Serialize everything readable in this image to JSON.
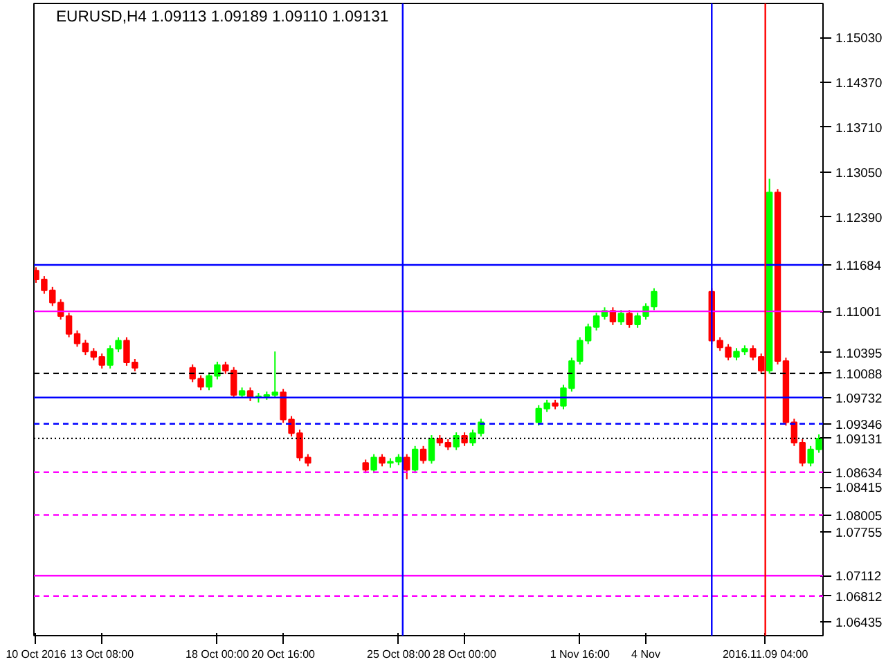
{
  "chart_data": {
    "type": "candlestick",
    "title": "EURUSD,H4  1.09113 1.09189 1.09110 1.09131",
    "grid": false,
    "x": [
      "2016-10-10T16:00",
      "2016-10-11T00:00",
      "2016-10-11T08:00",
      "2016-10-11T16:00",
      "2016-10-12T00:00",
      "2016-10-12T08:00",
      "2016-10-12T16:00",
      "2016-10-13T00:00",
      "2016-10-13T08:00",
      "2016-10-13T16:00",
      "2016-10-14T00:00",
      "2016-10-14T08:00",
      "2016-10-14T16:00",
      "2016-10-17T00:00",
      "2016-10-17T08:00",
      "2016-10-17T16:00",
      "2016-10-18T00:00",
      "2016-10-18T08:00",
      "2016-10-18T16:00",
      "2016-10-19T00:00",
      "2016-10-19T08:00",
      "2016-10-19T16:00",
      "2016-10-20T00:00",
      "2016-10-20T08:00",
      "2016-10-20T16:00",
      "2016-10-21T00:00",
      "2016-10-21T08:00",
      "2016-10-21T16:00",
      "2016-10-24T00:00",
      "2016-10-24T08:00",
      "2016-10-24T16:00",
      "2016-10-25T00:00",
      "2016-10-25T08:00",
      "2016-10-25T16:00",
      "2016-10-26T00:00",
      "2016-10-26T08:00",
      "2016-10-26T16:00",
      "2016-10-27T00:00",
      "2016-10-27T08:00",
      "2016-10-27T16:00",
      "2016-10-28T00:00",
      "2016-10-28T08:00",
      "2016-10-28T16:00",
      "2016-10-31T00:00",
      "2016-10-31T08:00",
      "2016-10-31T16:00",
      "2016-11-01T00:00",
      "2016-11-01T08:00",
      "2016-11-01T16:00",
      "2016-11-02T00:00",
      "2016-11-02T08:00",
      "2016-11-02T16:00",
      "2016-11-03T00:00",
      "2016-11-03T08:00",
      "2016-11-03T16:00",
      "2016-11-04T00:00",
      "2016-11-04T08:00",
      "2016-11-04T16:00",
      "2016-11-07T00:00",
      "2016-11-07T08:00",
      "2016-11-07T16:00",
      "2016-11-08T00:00",
      "2016-11-08T08:00",
      "2016-11-08T16:00",
      "2016-11-09T00:00",
      "2016-11-09T08:00",
      "2016-11-09T16:00",
      "2016-11-10T00:00",
      "2016-11-10T08:00",
      "2016-11-10T16:00",
      "2016-11-11T00:00",
      "2016-11-11T08:00"
    ],
    "ohlc": [
      [
        1.116,
        1.1165,
        1.1142,
        1.1147
      ],
      [
        1.1147,
        1.1152,
        1.1126,
        1.1131
      ],
      [
        1.1131,
        1.1136,
        1.1108,
        1.1113
      ],
      [
        1.1113,
        1.1118,
        1.1088,
        1.1093
      ],
      [
        1.1093,
        1.1098,
        1.1062,
        1.1067
      ],
      [
        1.1067,
        1.1072,
        1.1048,
        1.1053
      ],
      [
        1.1053,
        1.1058,
        1.1036,
        1.1041
      ],
      [
        1.1041,
        1.1046,
        1.1028,
        1.1033
      ],
      [
        1.1033,
        1.1038,
        1.1016,
        1.1021
      ],
      [
        1.1021,
        1.105,
        1.1016,
        1.1045
      ],
      [
        1.1045,
        1.1062,
        1.104,
        1.1057
      ],
      [
        1.1057,
        1.1062,
        1.102,
        1.1025
      ],
      [
        1.1025,
        1.103,
        1.1012,
        1.1017
      ],
      [
        1.1017,
        1.1022,
        1.0996,
        1.1001
      ],
      [
        1.1001,
        1.1006,
        1.0984,
        1.0989
      ],
      [
        1.0989,
        1.101,
        1.0984,
        1.1005
      ],
      [
        1.1005,
        1.1026,
        1.1,
        1.1021
      ],
      [
        1.1021,
        1.1026,
        1.1008,
        1.1013
      ],
      [
        1.1013,
        1.1018,
        1.0972,
        1.0977
      ],
      [
        1.0977,
        1.0988,
        1.0972,
        1.0983
      ],
      [
        1.0983,
        1.0988,
        1.0968,
        1.0973
      ],
      [
        1.0973,
        1.098,
        1.0966,
        1.0975
      ],
      [
        1.0975,
        1.0982,
        1.097,
        1.0977
      ],
      [
        1.0977,
        1.1041,
        1.0972,
        1.0981
      ],
      [
        1.0981,
        1.0986,
        1.0936,
        1.0941
      ],
      [
        1.0941,
        1.0946,
        1.0916,
        1.0921
      ],
      [
        1.0921,
        1.0926,
        1.088,
        1.0885
      ],
      [
        1.0885,
        1.089,
        1.0872,
        1.0877
      ],
      [
        1.0877,
        1.0882,
        1.0862,
        1.0867
      ],
      [
        1.0867,
        1.089,
        1.0862,
        1.0885
      ],
      [
        1.0885,
        1.089,
        1.0872,
        1.0877
      ],
      [
        1.0877,
        1.0884,
        1.087,
        1.0879
      ],
      [
        1.0879,
        1.089,
        1.0874,
        1.0885
      ],
      [
        1.0885,
        1.089,
        1.0853,
        1.0867
      ],
      [
        1.0867,
        1.0902,
        1.0862,
        1.0897
      ],
      [
        1.0897,
        1.0902,
        1.0876,
        1.0881
      ],
      [
        1.0881,
        1.0918,
        1.0876,
        1.0913
      ],
      [
        1.0913,
        1.0918,
        1.0902,
        1.0907
      ],
      [
        1.0907,
        1.0912,
        1.0896,
        1.0901
      ],
      [
        1.0901,
        1.0922,
        1.0896,
        1.0917
      ],
      [
        1.0917,
        1.0922,
        1.0902,
        1.0907
      ],
      [
        1.0907,
        1.0926,
        1.0902,
        1.0921
      ],
      [
        1.0921,
        1.0942,
        1.0916,
        1.0937
      ],
      [
        1.0937,
        1.0962,
        1.0932,
        1.0957
      ],
      [
        1.0957,
        1.097,
        1.0952,
        1.0965
      ],
      [
        1.0965,
        1.097,
        1.0956,
        1.0961
      ],
      [
        1.0961,
        1.0992,
        1.0956,
        1.0987
      ],
      [
        1.0987,
        1.1032,
        1.0982,
        1.1027
      ],
      [
        1.1027,
        1.1062,
        1.1022,
        1.1057
      ],
      [
        1.1057,
        1.1082,
        1.1052,
        1.1077
      ],
      [
        1.1077,
        1.1098,
        1.1072,
        1.1093
      ],
      [
        1.1093,
        1.1106,
        1.1088,
        1.1101
      ],
      [
        1.1101,
        1.1106,
        1.108,
        1.1085
      ],
      [
        1.1085,
        1.1102,
        1.108,
        1.1097
      ],
      [
        1.1097,
        1.1102,
        1.1076,
        1.1081
      ],
      [
        1.1081,
        1.1098,
        1.1076,
        1.1093
      ],
      [
        1.1093,
        1.1112,
        1.1088,
        1.1107
      ],
      [
        1.1107,
        1.1134,
        1.1102,
        1.1129
      ],
      [
        1.1129,
        1.1134,
        1.1052,
        1.1057
      ],
      [
        1.1057,
        1.1062,
        1.1042,
        1.1047
      ],
      [
        1.1047,
        1.1052,
        1.1028,
        1.1033
      ],
      [
        1.1033,
        1.1046,
        1.1028,
        1.1041
      ],
      [
        1.1041,
        1.105,
        1.1036,
        1.1045
      ],
      [
        1.1045,
        1.105,
        1.1028,
        1.1033
      ],
      [
        1.1033,
        1.1038,
        1.1008,
        1.1013
      ],
      [
        1.1013,
        1.1295,
        1.1008,
        1.1275
      ],
      [
        1.1275,
        1.128,
        1.1022,
        1.1027
      ],
      [
        1.1027,
        1.1032,
        1.0932,
        1.0937
      ],
      [
        1.0937,
        1.0942,
        1.0902,
        1.0907
      ],
      [
        1.0907,
        1.0912,
        1.0872,
        1.0877
      ],
      [
        1.0877,
        1.0902,
        1.0872,
        1.0897
      ],
      [
        1.0897,
        1.0919,
        1.0892,
        1.0913
      ]
    ],
    "colors": [
      "#ff0000",
      "#ff0000",
      "#ff0000",
      "#ff0000",
      "#ff0000",
      "#ff0000",
      "#ff0000",
      "#ff0000",
      "#ff0000",
      "#00ff00",
      "#00ff00",
      "#ff0000",
      "#ff0000",
      "#ff0000",
      "#ff0000",
      "#00ff00",
      "#00ff00",
      "#ff0000",
      "#ff0000",
      "#00ff00",
      "#ff0000",
      "#00ff00",
      "#00ff00",
      "#00ff00",
      "#ff0000",
      "#ff0000",
      "#ff0000",
      "#ff0000",
      "#ff0000",
      "#00ff00",
      "#ff0000",
      "#00ff00",
      "#00ff00",
      "#ff0000",
      "#00ff00",
      "#ff0000",
      "#00ff00",
      "#ff0000",
      "#ff0000",
      "#00ff00",
      "#ff0000",
      "#00ff00",
      "#00ff00",
      "#00ff00",
      "#00ff00",
      "#ff0000",
      "#00ff00",
      "#00ff00",
      "#00ff00",
      "#00ff00",
      "#00ff00",
      "#00ff00",
      "#ff0000",
      "#00ff00",
      "#ff0000",
      "#00ff00",
      "#00ff00",
      "#00ff00",
      "#ff0000",
      "#ff0000",
      "#ff0000",
      "#00ff00",
      "#00ff00",
      "#ff0000",
      "#ff0000",
      "#00ff00",
      "#ff0000",
      "#ff0000",
      "#ff0000",
      "#ff0000",
      "#00ff00",
      "#00ff00"
    ],
    "xlim": [
      "2016-10-10T14:00",
      "2016-11-11T12:00"
    ],
    "ylim": [
      1.0623,
      1.1553
    ],
    "xticks": [
      {
        "value": "2016-10-10T16:00",
        "label": "10 Oct 2016"
      },
      {
        "value": "2016-10-13T08:00",
        "label": "13 Oct 08:00"
      },
      {
        "value": "2016-10-18T00:00",
        "label": "18 Oct 00:00"
      },
      {
        "value": "2016-10-20T16:00",
        "label": "20 Oct 16:00"
      },
      {
        "value": "2016-10-25T08:00",
        "label": "25 Oct 08:00"
      },
      {
        "value": "2016-10-28T00:00",
        "label": "28 Oct 00:00"
      },
      {
        "value": "2016-11-01T16:00",
        "label": "1 Nov 16:00"
      },
      {
        "value": "2016-11-04T08:00",
        "label": "4 Nov"
      }
    ],
    "yticks": [
      {
        "value": 1.1503,
        "label": "1.15030"
      },
      {
        "value": 1.1437,
        "label": "1.14370"
      },
      {
        "value": 1.1371,
        "label": "1.13710"
      },
      {
        "value": 1.1305,
        "label": "1.13050"
      },
      {
        "value": 1.1239,
        "label": "1.12390"
      },
      {
        "value": 1.10395,
        "label": "1.10395"
      },
      {
        "value": 1.08415,
        "label": "1.08415"
      },
      {
        "value": 1.07755,
        "label": "1.07755"
      },
      {
        "value": 1.06435,
        "label": "1.06435"
      }
    ],
    "ref_lines": [
      {
        "axis": "y",
        "value": 1.11684,
        "label": "1.11684",
        "color": "#0000ff",
        "line_style": "solid"
      },
      {
        "axis": "y",
        "value": 1.11001,
        "label": "1.11001",
        "color": "#ff00ff",
        "line_style": "solid"
      },
      {
        "axis": "y",
        "value": 1.10088,
        "label": "1.10088",
        "color": "#000000",
        "line_style": "dashed"
      },
      {
        "axis": "y",
        "value": 1.09732,
        "label": "1.09732",
        "color": "#0000ff",
        "line_style": "solid"
      },
      {
        "axis": "y",
        "value": 1.09346,
        "label": "1.09346",
        "color": "#0000ff",
        "line_style": "dashed"
      },
      {
        "axis": "y",
        "value": 1.09131,
        "label": "1.09131",
        "color": "#000000",
        "line_style": "dotted"
      },
      {
        "axis": "y",
        "value": 1.08634,
        "label": "1.08634",
        "color": "#ff00ff",
        "line_style": "dashed"
      },
      {
        "axis": "y",
        "value": 1.08005,
        "label": "1.08005",
        "color": "#ff00ff",
        "line_style": "dashed"
      },
      {
        "axis": "y",
        "value": 1.07112,
        "label": "1.07112",
        "color": "#ff00ff",
        "line_style": "solid"
      },
      {
        "axis": "y",
        "value": 1.06812,
        "label": "1.06812",
        "color": "#ff00ff",
        "line_style": "dashed"
      },
      {
        "axis": "x",
        "value": "2016-11-09T04:00",
        "label": "2016.11.09 04:00",
        "color": "#ff0000",
        "line_style": "solid"
      },
      {
        "axis": "x",
        "value": "2016-10-25T12:00",
        "color": "#0000ff",
        "line_style": "solid"
      },
      {
        "axis": "x",
        "value": "2016-11-07T00:00",
        "color": "#0000ff",
        "line_style": "solid"
      }
    ]
  }
}
